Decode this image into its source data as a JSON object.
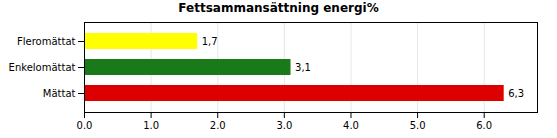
{
  "chart_data": {
    "type": "bar",
    "orientation": "horizontal",
    "title": "Fettsammansättning energi%",
    "categories": [
      "Mättat",
      "Enkelomättat",
      "Fleromättat"
    ],
    "values": [
      6.3,
      3.1,
      1.7
    ],
    "value_labels": [
      "6,3",
      "3,1",
      "1,7"
    ],
    "colors": [
      "#dd0000",
      "#1a7a1a",
      "#ffff00"
    ],
    "xlim": [
      0,
      6.8
    ],
    "xticks": [
      0,
      1,
      2,
      3,
      4,
      5,
      6
    ],
    "grid": true,
    "data_labels": true
  }
}
